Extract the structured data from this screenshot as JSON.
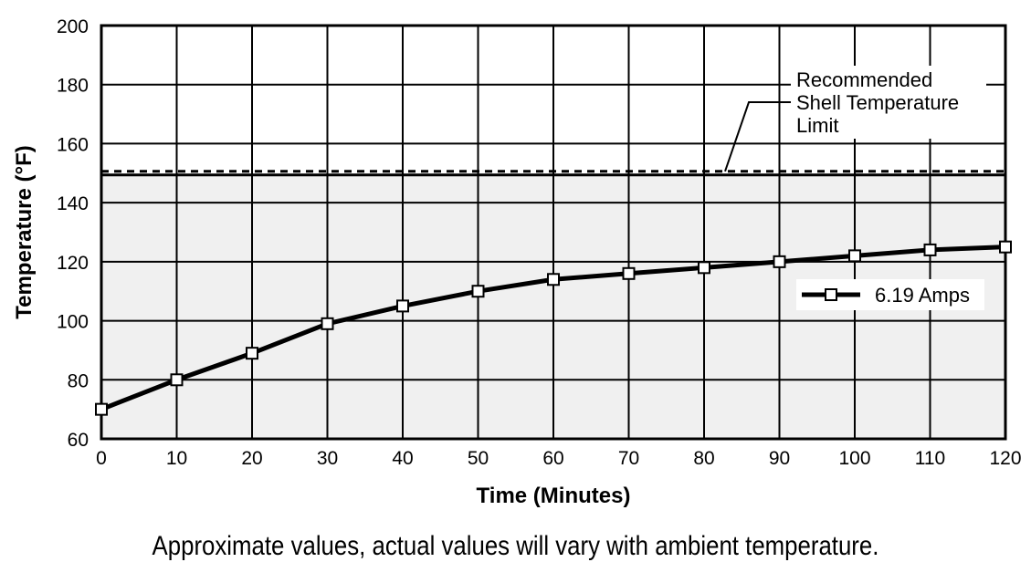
{
  "chart_data": {
    "type": "line",
    "xlabel": "Time (Minutes)",
    "ylabel": "Temperature (°F)",
    "xlim": [
      0,
      120
    ],
    "ylim": [
      60,
      200
    ],
    "x_ticks": [
      0,
      10,
      20,
      30,
      40,
      50,
      60,
      70,
      80,
      90,
      100,
      110,
      120
    ],
    "y_ticks": [
      60,
      80,
      100,
      120,
      140,
      160,
      180,
      200
    ],
    "grid": true,
    "legend_position": "right",
    "series": [
      {
        "name": "6.19 Amps",
        "marker": "square",
        "x": [
          0,
          10,
          20,
          30,
          40,
          50,
          60,
          70,
          80,
          90,
          100,
          110,
          120
        ],
        "y": [
          70,
          80,
          89,
          99,
          105,
          110,
          114,
          116,
          118,
          120,
          122,
          124,
          125
        ]
      }
    ],
    "limit_line": {
      "value": 150,
      "label_lines": [
        "Recommended",
        "Shell Temperature",
        "Limit"
      ],
      "style": "dashed"
    },
    "shaded_region": {
      "from": 60,
      "to": 150,
      "color": "#f0f0f0"
    }
  },
  "caption": "Approximate values, actual values will vary with ambient temperature."
}
